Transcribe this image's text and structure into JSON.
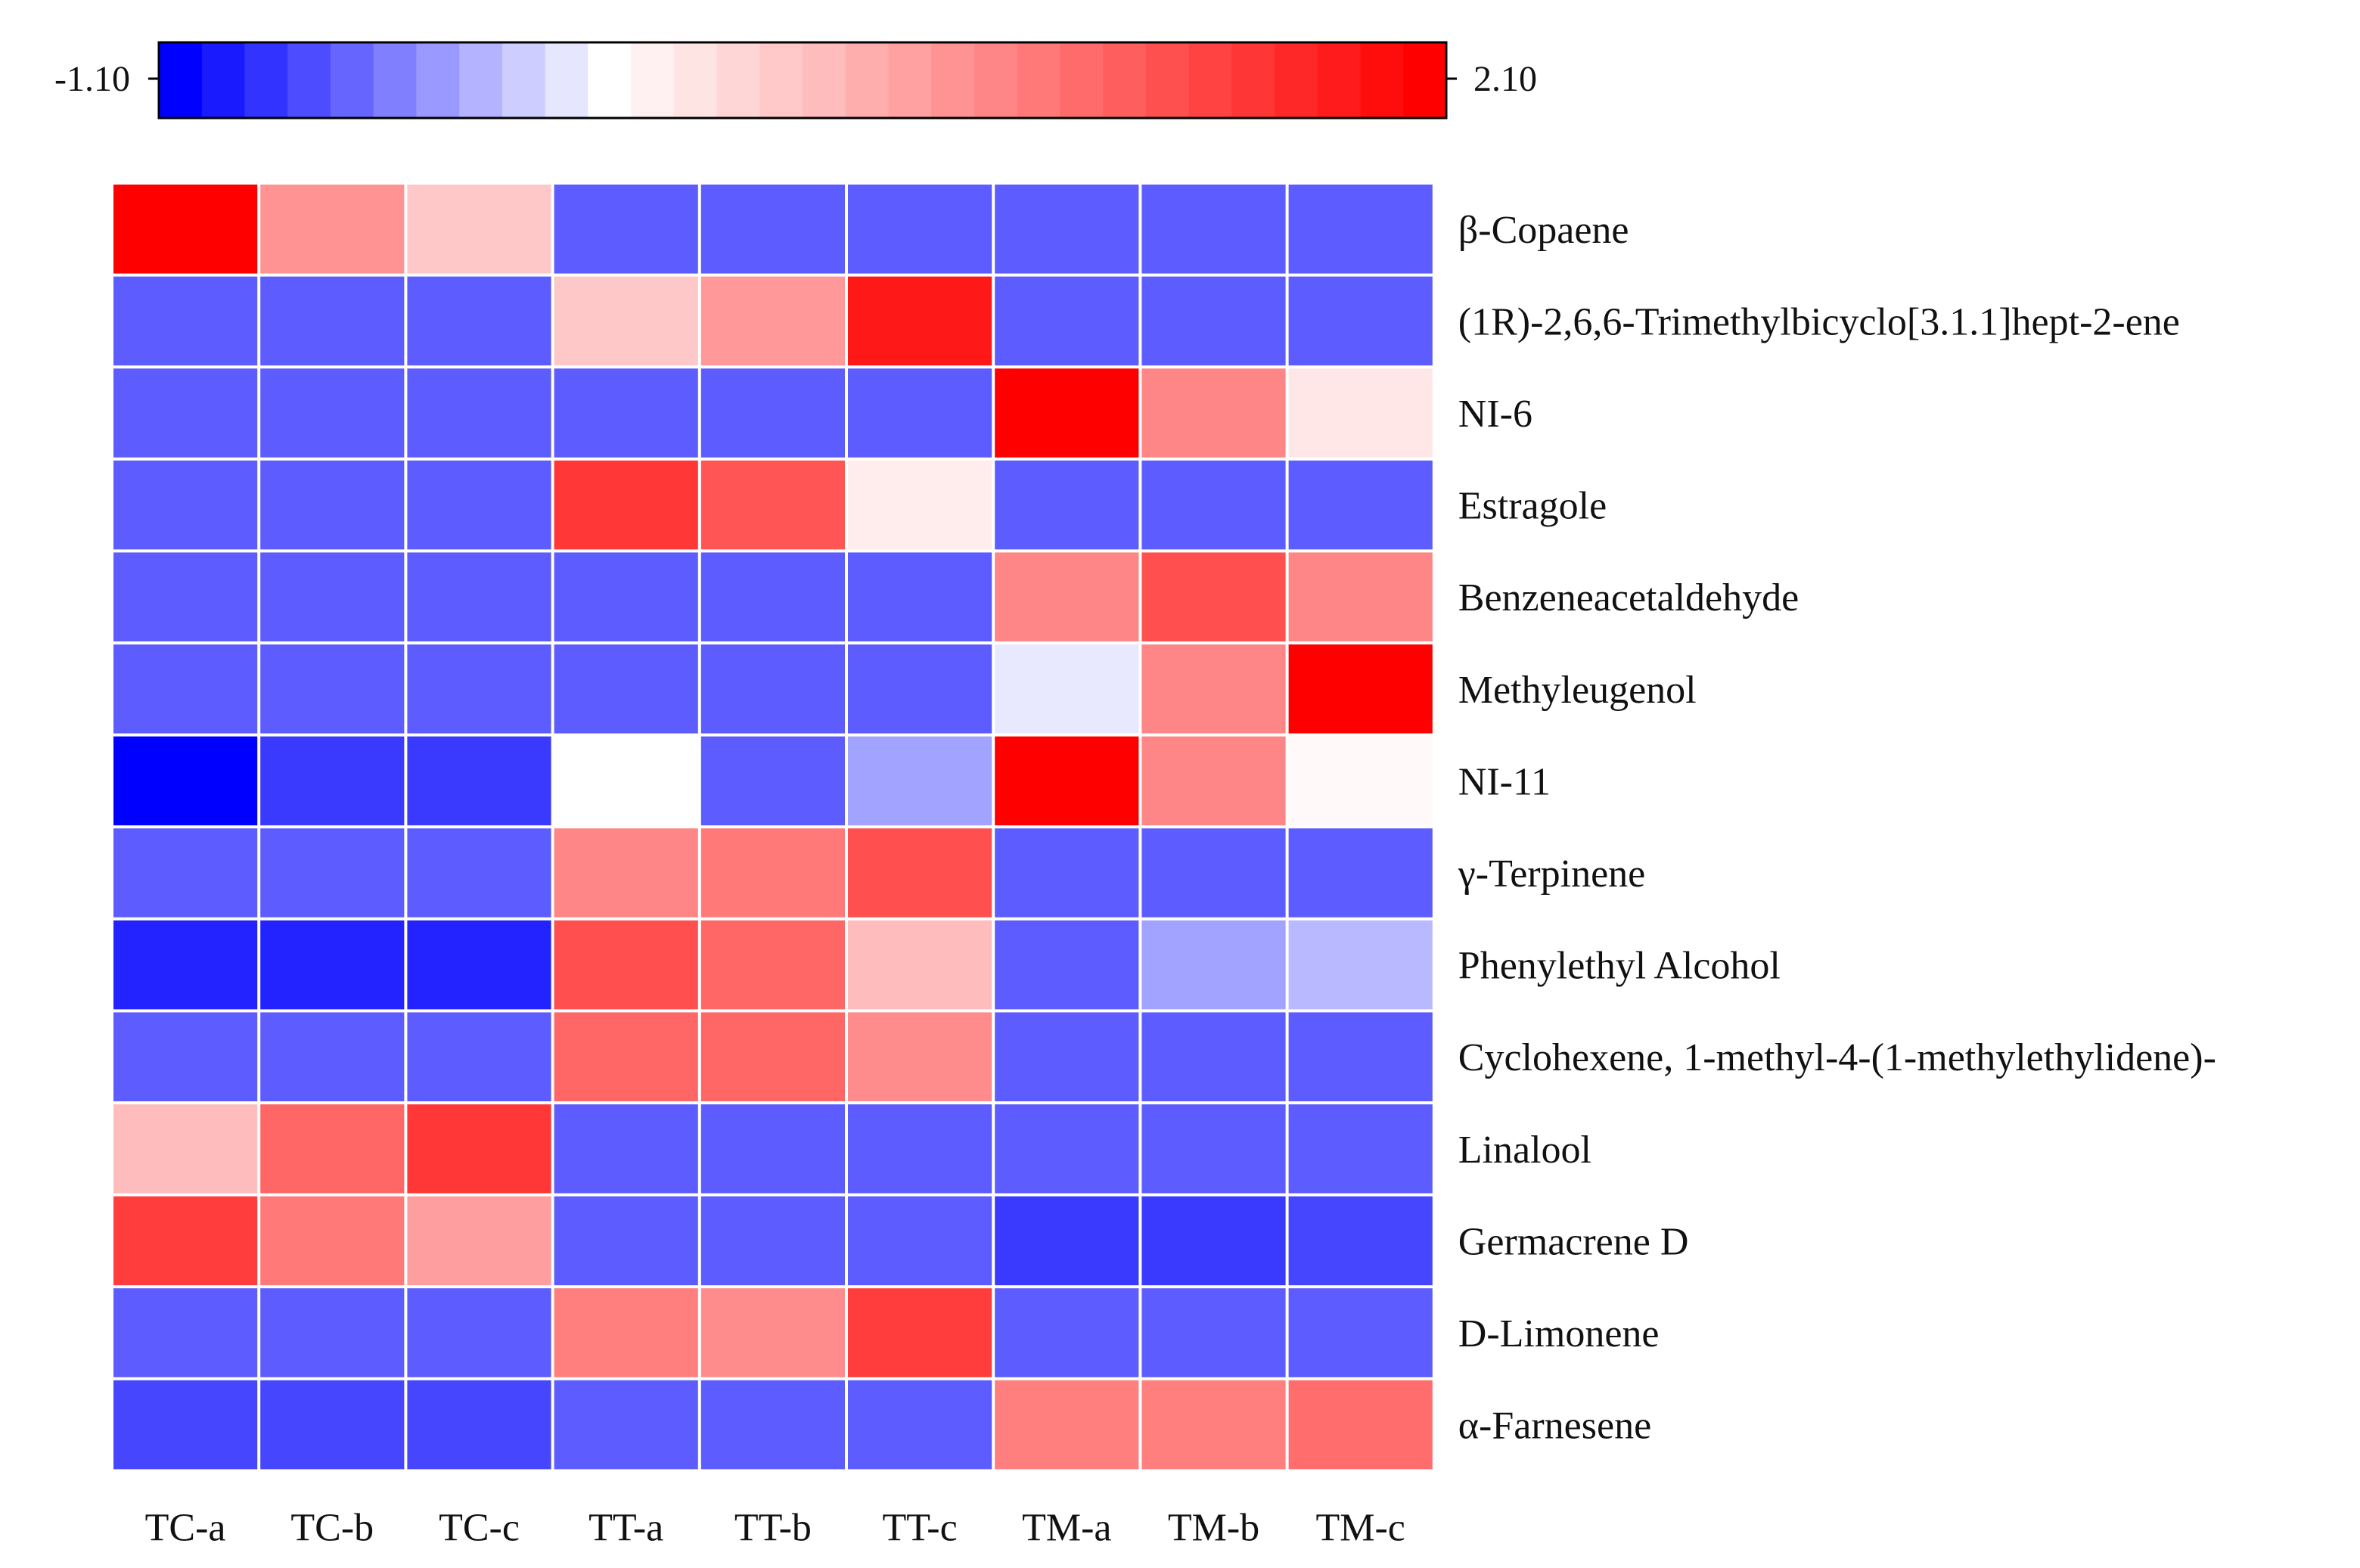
{
  "chart_data": {
    "type": "heatmap",
    "columns": [
      "TC-a",
      "TC-b",
      "TC-c",
      "TT-a",
      "TT-b",
      "TT-c",
      "TM-a",
      "TM-b",
      "TM-c"
    ],
    "rows": [
      "β-Copaene",
      "(1R)-2,6,6-Trimethylbicyclo[3.1.1]hept-2-ene",
      "NI-6",
      "Estragole",
      "Benzeneacetaldehyde",
      "Methyleugenol",
      "NI-11",
      "γ-Terpinene",
      "Phenylethyl Alcohol",
      "Cyclohexene, 1-methyl-4-(1-methylethylidene)-",
      "Linalool",
      "Germacrene D",
      "D-Limonene",
      "α-Farnesene"
    ],
    "values": [
      [
        2.1,
        0.9,
        0.45,
        -0.7,
        -0.7,
        -0.7,
        -0.7,
        -0.7,
        -0.7
      ],
      [
        -0.7,
        -0.7,
        -0.7,
        0.45,
        0.85,
        1.9,
        -0.7,
        -0.7,
        -0.7
      ],
      [
        -0.7,
        -0.7,
        -0.7,
        -0.7,
        -0.7,
        -0.7,
        2.1,
        1.0,
        0.2
      ],
      [
        -0.7,
        -0.7,
        -0.7,
        1.65,
        1.4,
        0.15,
        -0.7,
        -0.7,
        -0.7
      ],
      [
        -0.7,
        -0.7,
        -0.7,
        -0.7,
        -0.7,
        -0.7,
        1.0,
        1.45,
        1.0
      ],
      [
        -0.7,
        -0.7,
        -0.7,
        -0.7,
        -0.7,
        -0.7,
        -0.1,
        1.0,
        2.1
      ],
      [
        -1.1,
        -0.85,
        -0.85,
        0.0,
        -0.7,
        -0.4,
        2.1,
        1.0,
        0.05
      ],
      [
        -0.7,
        -0.7,
        -0.7,
        1.0,
        1.1,
        1.45,
        -0.7,
        -0.7,
        -0.7
      ],
      [
        -0.95,
        -0.95,
        -0.95,
        1.45,
        1.25,
        0.55,
        -0.7,
        -0.4,
        -0.3
      ],
      [
        -0.7,
        -0.7,
        -0.7,
        1.25,
        1.25,
        0.95,
        -0.7,
        -0.7,
        -0.7
      ],
      [
        0.55,
        1.25,
        1.65,
        -0.7,
        -0.7,
        -0.7,
        -0.7,
        -0.7,
        -0.7
      ],
      [
        1.6,
        1.1,
        0.8,
        -0.7,
        -0.7,
        -0.7,
        -0.85,
        -0.85,
        -0.8
      ],
      [
        -0.7,
        -0.7,
        -0.7,
        1.05,
        0.95,
        1.6,
        -0.7,
        -0.7,
        -0.7
      ],
      [
        -0.8,
        -0.8,
        -0.8,
        -0.7,
        -0.7,
        -0.7,
        1.05,
        1.05,
        1.2
      ]
    ],
    "colorbar": {
      "min": -1.1,
      "max": 2.1,
      "min_label": "-1.10",
      "max_label": "2.10",
      "min_color": "#0000ff",
      "mid_color": "#ffffff",
      "max_color": "#ff0000",
      "steps": 30
    },
    "title": "",
    "xlabel": "",
    "ylabel": "",
    "grid": false
  }
}
